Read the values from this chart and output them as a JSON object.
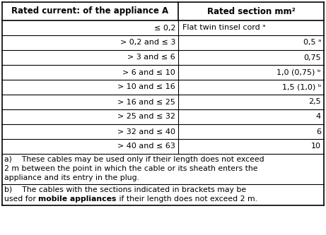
{
  "col1_header": "Rated current: of the appliance A",
  "col2_header": "Rated section mm²",
  "rows": [
    [
      "≤ 0,2",
      "Flat twin tinsel cord ᵃ"
    ],
    [
      "> 0,2 and ≤ 3",
      "0,5 ᵃ"
    ],
    [
      "> 3 and ≤ 6",
      "0,75"
    ],
    [
      "> 6 and ≤ 10",
      "1,0 (0,75) ᵇ"
    ],
    [
      "> 10 and ≤ 16",
      "1,5 (1,0) ᵇ"
    ],
    [
      "> 16 and ≤ 25",
      "2,5"
    ],
    [
      "> 25 and ≤ 32",
      "4"
    ],
    [
      "> 32 and ≤ 40",
      "6"
    ],
    [
      "> 40 and ≤ 63",
      "10"
    ]
  ],
  "fn_a_lines": [
    "a)    These cables may be used only if their length does not exceed",
    "2 m between the point in which the cable or its sheath enters the",
    "appliance and its entry in the plug."
  ],
  "fn_b_line1": "b)    The cables with the sections indicated in brackets may be",
  "fn_b_prefix": "used for ",
  "fn_b_bold": "mobile appliances",
  "fn_b_suffix": " if their length does not exceed 2 m.",
  "border_color": "#000000",
  "text_color": "#000000",
  "font_size": 8.0,
  "header_font_size": 8.5,
  "fn_font_size": 7.8
}
